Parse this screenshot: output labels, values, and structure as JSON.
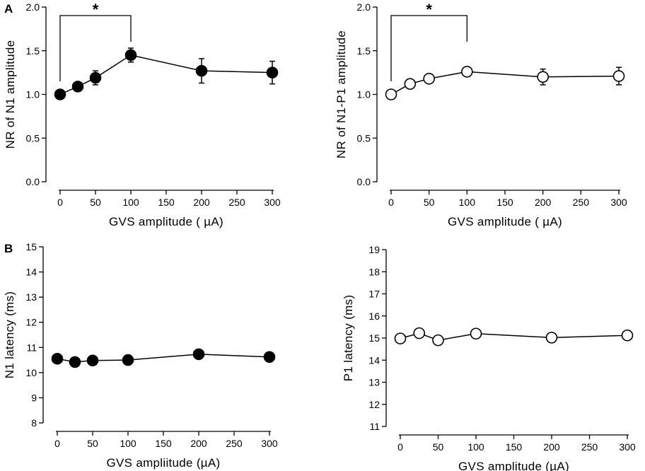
{
  "figure": {
    "panel_a_label": "A",
    "panel_b_label": "B"
  },
  "colors": {
    "ink": "#000000",
    "filled_marker": "#000000",
    "open_marker": "#ffffff"
  },
  "chart_data": [
    {
      "id": "n1-amplitude",
      "type": "line",
      "panel": "A",
      "marker": "filled",
      "xlabel": "GVS amplitude ( µA)",
      "ylabel": "NR of N1 amplitude",
      "xlim": [
        0,
        300
      ],
      "ylim": [
        0.0,
        2.0
      ],
      "xticks": [
        "0",
        "50",
        "100",
        "150",
        "200",
        "250",
        "300"
      ],
      "yticks": [
        "0.0",
        "0.5",
        "1.0",
        "1.5",
        "2.0"
      ],
      "series": [
        {
          "name": "N1",
          "x": [
            0,
            25,
            50,
            100,
            200,
            300
          ],
          "y": [
            1.0,
            1.09,
            1.19,
            1.45,
            1.27,
            1.25
          ],
          "err": [
            0.0,
            0.05,
            0.08,
            0.08,
            0.14,
            0.13
          ]
        }
      ],
      "annotation": {
        "text": "*",
        "from_x": 0,
        "to_x": 100
      }
    },
    {
      "id": "n1p1-amplitude",
      "type": "line",
      "panel": "A",
      "marker": "open",
      "xlabel": "GVS amplitude ( µA)",
      "ylabel": "NR of N1-P1 amplitude",
      "xlim": [
        0,
        300
      ],
      "ylim": [
        0.0,
        2.0
      ],
      "xticks": [
        "0",
        "50",
        "100",
        "150",
        "200",
        "250",
        "300"
      ],
      "yticks": [
        "0.0",
        "0.5",
        "1.0",
        "1.5",
        "2.0"
      ],
      "series": [
        {
          "name": "N1-P1",
          "x": [
            0,
            25,
            50,
            100,
            200,
            300
          ],
          "y": [
            1.0,
            1.12,
            1.18,
            1.26,
            1.2,
            1.21
          ],
          "err": [
            0.0,
            0.05,
            0.05,
            0.05,
            0.09,
            0.1
          ]
        }
      ],
      "annotation": {
        "text": "*",
        "from_x": 0,
        "to_x": 100
      }
    },
    {
      "id": "n1-latency",
      "type": "line",
      "panel": "B",
      "marker": "filled",
      "xlabel": "GVS ampliitude (µA)",
      "ylabel": "N1 latency (ms)",
      "xlim": [
        0,
        300
      ],
      "ylim": [
        8,
        15
      ],
      "xticks": [
        "0",
        "50",
        "100",
        "150",
        "200",
        "250",
        "300"
      ],
      "yticks": [
        "8",
        "9",
        "10",
        "11",
        "12",
        "13",
        "14",
        "15"
      ],
      "series": [
        {
          "name": "N1 latency",
          "x": [
            0,
            25,
            50,
            100,
            200,
            300
          ],
          "y": [
            10.55,
            10.42,
            10.48,
            10.5,
            10.73,
            10.62
          ],
          "err": [
            0.0,
            0.0,
            0.0,
            0.0,
            0.12,
            0.1
          ]
        }
      ]
    },
    {
      "id": "p1-latency",
      "type": "line",
      "panel": "B",
      "marker": "open",
      "xlabel": "GVS amplitude (µA)",
      "ylabel": "P1 latency (ms)",
      "xlim": [
        0,
        300
      ],
      "ylim": [
        11,
        19
      ],
      "xticks": [
        "0",
        "50",
        "100",
        "150",
        "200",
        "250",
        "300"
      ],
      "yticks": [
        "11",
        "12",
        "13",
        "14",
        "15",
        "16",
        "17",
        "18",
        "19"
      ],
      "series": [
        {
          "name": "P1 latency",
          "x": [
            0,
            25,
            50,
            100,
            200,
            300
          ],
          "y": [
            14.98,
            15.22,
            14.9,
            15.2,
            15.02,
            15.12
          ],
          "err": [
            0.12,
            0.18,
            0.15,
            0.15,
            0.15,
            0.18
          ]
        }
      ]
    }
  ]
}
